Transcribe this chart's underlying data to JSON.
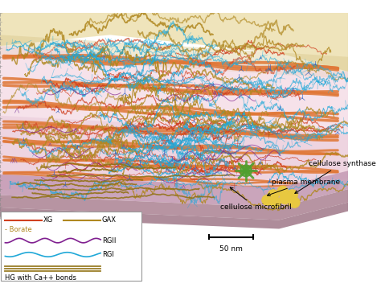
{
  "fig_width": 4.74,
  "fig_height": 3.68,
  "bg_color": "#ffffff",
  "colors": {
    "XG": "#d04020",
    "GAX": "#b08820",
    "RGII": "#802090",
    "RGI": "#20a8d8",
    "HG": "#907010",
    "cellulose": "#e07838",
    "cellulose2": "#d06828",
    "membrane_top": "#c8a0b8",
    "membrane_side": "#b08898",
    "membrane_bottom": "#a07888",
    "green_synth": "#50a030",
    "yellow_bead": "#e8c840",
    "sky_yellow": "#ede0b0",
    "sky_tan": "#d4c080",
    "cell_bg": "#f0d8e0",
    "cell_bg2": "#e8c8d8",
    "pink_bg": "#f0d0dc",
    "blue_small": "#3060c0",
    "purple_small": "#8040a0",
    "red_small": "#c03020"
  },
  "labels": {
    "cellulose_synthase": "cellulose synthase",
    "plasma_membrane": "plasma membrane",
    "cellulose_microfibril": "cellulose microfibril",
    "scale_bar": "50 nm",
    "XG": "XG",
    "GAX": "GAX",
    "borate": "- Borate",
    "RGII": "RGII",
    "RGI": "RGI",
    "HG": "HG with Ca++ bonds"
  },
  "font_size_annot": 6.5,
  "font_size_legend": 6.0
}
